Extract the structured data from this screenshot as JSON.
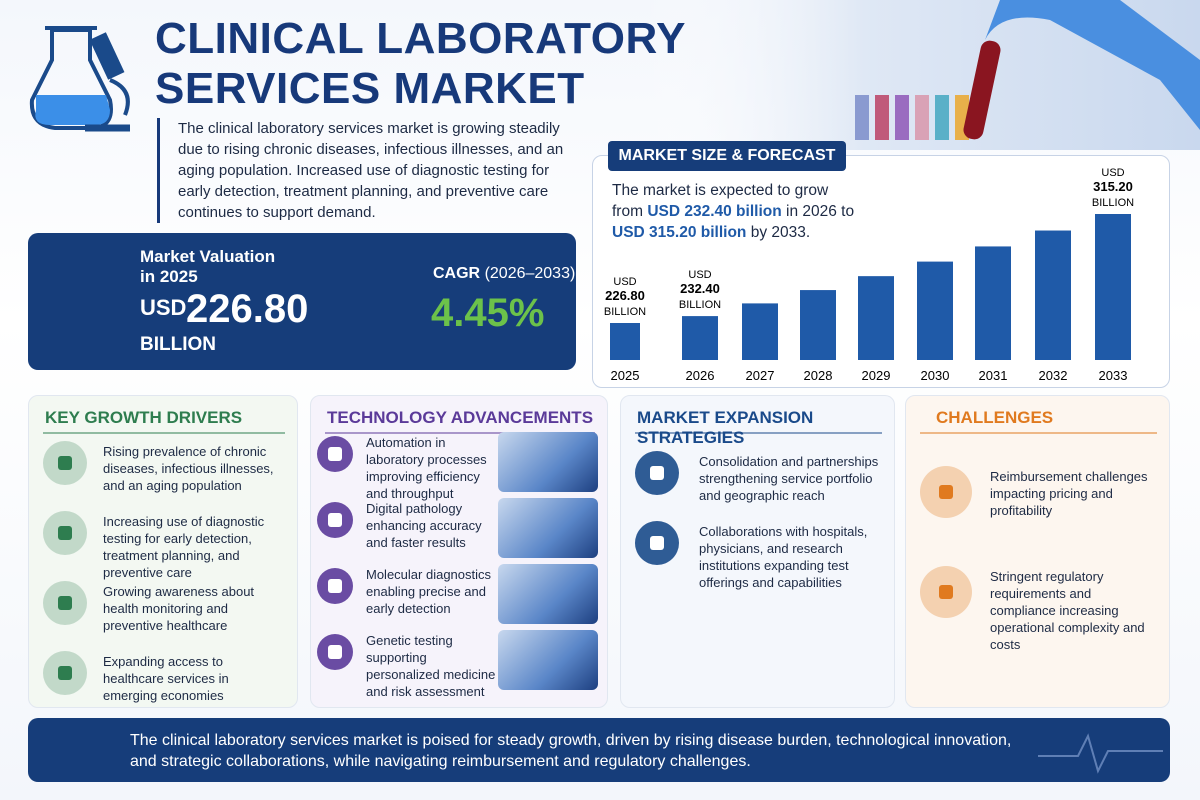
{
  "header": {
    "title_lines": [
      "CLINICAL LABORATORY",
      "SERVICES MARKET"
    ],
    "description": "The clinical laboratory services market is growing steadily due to rising chronic diseases, infectious illnesses, and an aging population. Increased use of diagnostic testing for early detection, treatment planning, and preventive care continues to support demand."
  },
  "valuation": {
    "label": "Market Valuation in 2025",
    "currency": "USD",
    "amount": "226.80",
    "unit": "BILLION"
  },
  "cagr": {
    "label": "CAGR",
    "period": "(2026–2033)",
    "value": "4.45%"
  },
  "chart_data": {
    "type": "bar",
    "title": "MARKET SIZE & FORECAST",
    "summary": [
      "The market is expected to grow from",
      "USD 232.40 billion",
      "in 2026 to",
      "USD 315.20 billion",
      "by 2033."
    ],
    "categories": [
      "2025",
      "2026",
      "2027",
      "2028",
      "2029",
      "2030",
      "2031",
      "2032",
      "2033"
    ],
    "values": [
      226.8,
      232.4,
      242.7,
      253.5,
      264.8,
      276.6,
      288.9,
      301.8,
      315.2
    ],
    "value_labels": [
      "226.80",
      "232.40",
      null,
      null,
      null,
      null,
      null,
      null,
      "315.20"
    ],
    "label_prefix": "USD",
    "label_suffix": "BILLION",
    "color": "#1f5aa8"
  },
  "sections": [
    {
      "title": "KEY GROWTH DRIVERS",
      "color": "#2e7d4f",
      "items": [
        "Rising prevalence of chronic diseases, infectious illnesses, and an aging population",
        "Increasing use of diagnostic testing for early detection, treatment planning, and preventive care",
        "Growing awareness about health monitoring and preventive healthcare",
        "Expanding access to healthcare services in emerging economies"
      ]
    },
    {
      "title": "TECHNOLOGY ADVANCEMENTS",
      "color": "#5b3a99",
      "items": [
        "Automation in laboratory processes improving efficiency and throughput",
        "Digital pathology enhancing accuracy and faster results",
        "Molecular diagnostics enabling precise and early detection",
        "Genetic testing supporting personalized medicine and risk assessment"
      ]
    },
    {
      "title": "MARKET EXPANSION STRATEGIES",
      "color": "#1a4a8a",
      "items": [
        "Consolidation and partnerships strengthening service portfolio and geographic reach",
        "Collaborations with hospitals, physicians, and research institutions expanding test offerings and capabilities"
      ]
    },
    {
      "title": "CHALLENGES",
      "color": "#e07a1f",
      "items": [
        "Reimbursement challenges impacting pricing and profitability",
        "Stringent regulatory requirements and compliance increasing operational complexity and costs"
      ]
    }
  ],
  "footer": {
    "text": "The clinical laboratory services market is poised for steady growth, driven by rising disease burden, technological innovation, and strategic collaborations, while navigating reimbursement and regulatory challenges."
  }
}
